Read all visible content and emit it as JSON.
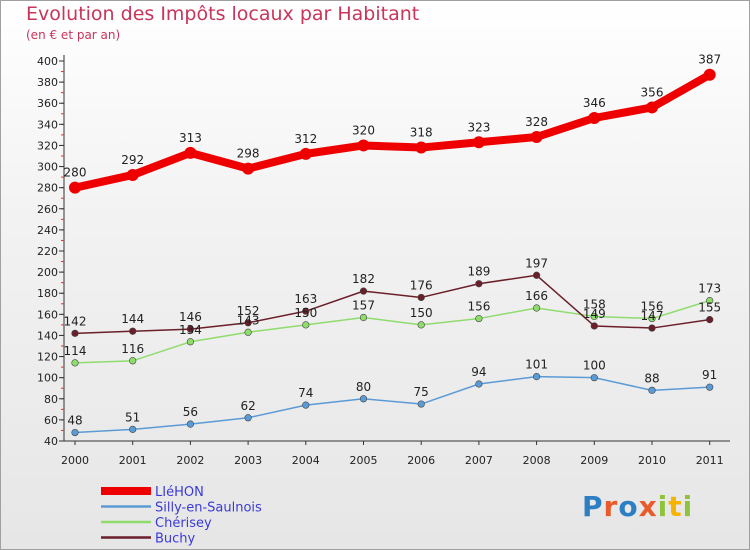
{
  "title": "Evolution des Impôts locaux par Habitant",
  "subtitle": "(en € et par an)",
  "logo_text": "Proxiti",
  "chart_data": {
    "type": "line",
    "title": "Evolution des Impôts locaux par Habitant",
    "subtitle": "(en € et par an)",
    "xlabel": "",
    "ylabel": "",
    "x": [
      "2000",
      "2001",
      "2002",
      "2003",
      "2004",
      "2005",
      "2006",
      "2007",
      "2008",
      "2009",
      "2010",
      "2011"
    ],
    "ylim": [
      40,
      400
    ],
    "yticks": [
      40,
      60,
      80,
      100,
      120,
      140,
      160,
      180,
      200,
      220,
      240,
      260,
      280,
      300,
      320,
      340,
      360,
      380,
      400
    ],
    "grid": false,
    "legend_position": "bottom-left",
    "series": [
      {
        "name": "LIéHON",
        "color": "#ee0000",
        "values": [
          280,
          292,
          313,
          298,
          312,
          320,
          318,
          323,
          328,
          346,
          356,
          387
        ]
      },
      {
        "name": "Silly-en-Saulnois",
        "color": "#5b9bd5",
        "values": [
          48,
          51,
          56,
          62,
          74,
          80,
          75,
          94,
          101,
          100,
          88,
          91
        ]
      },
      {
        "name": "Chérisey",
        "color": "#8fdc6c",
        "values": [
          114,
          116,
          134,
          143,
          150,
          157,
          150,
          156,
          166,
          158,
          156,
          173
        ]
      },
      {
        "name": "Buchy",
        "color": "#6b1f2a",
        "values": [
          142,
          144,
          146,
          152,
          163,
          182,
          176,
          189,
          197,
          149,
          147,
          155
        ]
      }
    ]
  }
}
